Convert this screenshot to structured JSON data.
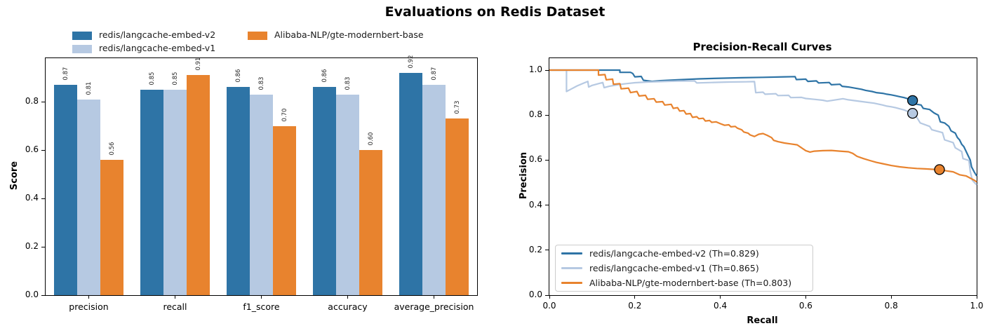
{
  "figure": {
    "title": "Evaluations on Redis Dataset",
    "background": "#ffffff"
  },
  "palette": {
    "embed_v2": "#2e74a6",
    "embed_v1": "#b6c9e2",
    "modernbert": "#e8832e",
    "marker_edge": "#000000",
    "axis": "#000000",
    "legend_border": "#cccccc"
  },
  "legend_top": {
    "items": [
      {
        "label": "redis/langcache-embed-v2",
        "color_key": "embed_v2"
      },
      {
        "label": "redis/langcache-embed-v1",
        "color_key": "embed_v1"
      },
      {
        "label": "Alibaba-NLP/gte-modernbert-base",
        "color_key": "modernbert"
      }
    ]
  },
  "chart_data": [
    {
      "type": "bar",
      "title": "",
      "xlabel": "",
      "ylabel": "Score",
      "categories": [
        "precision",
        "recall",
        "f1_score",
        "accuracy",
        "average_precision"
      ],
      "series": [
        {
          "name": "redis/langcache-embed-v2",
          "color_key": "embed_v2",
          "values": [
            0.87,
            0.85,
            0.86,
            0.86,
            0.92
          ]
        },
        {
          "name": "redis/langcache-embed-v1",
          "color_key": "embed_v1",
          "values": [
            0.81,
            0.85,
            0.83,
            0.83,
            0.87
          ]
        },
        {
          "name": "Alibaba-NLP/gte-modernbert-base",
          "color_key": "modernbert",
          "values": [
            0.56,
            0.91,
            0.7,
            0.6,
            0.73
          ]
        }
      ],
      "ylim": [
        0,
        0.98
      ],
      "yticks": [
        0.0,
        0.2,
        0.4,
        0.6,
        0.8
      ],
      "bar_label_decimals": 2,
      "grid": false,
      "legend_position": "above-upper-left"
    },
    {
      "type": "line",
      "title": "Precision-Recall Curves",
      "xlabel": "Recall",
      "ylabel": "Precision",
      "xlim": [
        0.0,
        1.0
      ],
      "ylim": [
        0,
        1.053
      ],
      "xticks": [
        0.0,
        0.2,
        0.4,
        0.6,
        0.8,
        1.0
      ],
      "yticks": [
        0.0,
        0.2,
        0.4,
        0.6,
        0.8,
        1.0
      ],
      "grid": false,
      "legend_position": "lower-left",
      "series": [
        {
          "name": "redis/langcache-embed-v2",
          "legend_label": "redis/langcache-embed-v2 (Th=0.829)",
          "threshold": 0.829,
          "color_key": "embed_v2",
          "operating_point": [
            0.85,
            0.865
          ],
          "points": [
            [
              0,
              1.0
            ],
            [
              0.165,
              1.0
            ],
            [
              0.165,
              0.99
            ],
            [
              0.19,
              0.99
            ],
            [
              0.195,
              0.985
            ],
            [
              0.2,
              0.97
            ],
            [
              0.215,
              0.972
            ],
            [
              0.22,
              0.955
            ],
            [
              0.24,
              0.95
            ],
            [
              0.26,
              0.953
            ],
            [
              0.3,
              0.957
            ],
            [
              0.35,
              0.961
            ],
            [
              0.4,
              0.964
            ],
            [
              0.45,
              0.966
            ],
            [
              0.5,
              0.968
            ],
            [
              0.55,
              0.97
            ],
            [
              0.575,
              0.971
            ],
            [
              0.578,
              0.958
            ],
            [
              0.6,
              0.96
            ],
            [
              0.605,
              0.95
            ],
            [
              0.625,
              0.952
            ],
            [
              0.63,
              0.943
            ],
            [
              0.655,
              0.945
            ],
            [
              0.66,
              0.935
            ],
            [
              0.68,
              0.937
            ],
            [
              0.685,
              0.928
            ],
            [
              0.7,
              0.925
            ],
            [
              0.715,
              0.92
            ],
            [
              0.73,
              0.915
            ],
            [
              0.74,
              0.91
            ],
            [
              0.755,
              0.905
            ],
            [
              0.765,
              0.9
            ],
            [
              0.78,
              0.897
            ],
            [
              0.79,
              0.893
            ],
            [
              0.8,
              0.89
            ],
            [
              0.81,
              0.886
            ],
            [
              0.82,
              0.882
            ],
            [
              0.83,
              0.878
            ],
            [
              0.84,
              0.872
            ],
            [
              0.845,
              0.868
            ],
            [
              0.85,
              0.865
            ],
            [
              0.855,
              0.85
            ],
            [
              0.87,
              0.845
            ],
            [
              0.875,
              0.83
            ],
            [
              0.89,
              0.825
            ],
            [
              0.9,
              0.81
            ],
            [
              0.905,
              0.805
            ],
            [
              0.91,
              0.8
            ],
            [
              0.915,
              0.77
            ],
            [
              0.925,
              0.765
            ],
            [
              0.935,
              0.75
            ],
            [
              0.94,
              0.73
            ],
            [
              0.95,
              0.72
            ],
            [
              0.955,
              0.7
            ],
            [
              0.96,
              0.69
            ],
            [
              0.965,
              0.67
            ],
            [
              0.97,
              0.66
            ],
            [
              0.975,
              0.64
            ],
            [
              0.98,
              0.62
            ],
            [
              0.985,
              0.6
            ],
            [
              0.988,
              0.57
            ],
            [
              0.995,
              0.545
            ],
            [
              1.0,
              0.53
            ]
          ]
        },
        {
          "name": "redis/langcache-embed-v1",
          "legend_label": "redis/langcache-embed-v1 (Th=0.865)",
          "threshold": 0.865,
          "color_key": "embed_v1",
          "operating_point": [
            0.85,
            0.808
          ],
          "points": [
            [
              0,
              1.0
            ],
            [
              0.04,
              1.0
            ],
            [
              0.04,
              0.905
            ],
            [
              0.05,
              0.915
            ],
            [
              0.065,
              0.93
            ],
            [
              0.08,
              0.942
            ],
            [
              0.09,
              0.95
            ],
            [
              0.092,
              0.925
            ],
            [
              0.1,
              0.932
            ],
            [
              0.115,
              0.94
            ],
            [
              0.125,
              0.945
            ],
            [
              0.128,
              0.922
            ],
            [
              0.14,
              0.928
            ],
            [
              0.16,
              0.935
            ],
            [
              0.18,
              0.94
            ],
            [
              0.2,
              0.944
            ],
            [
              0.23,
              0.947
            ],
            [
              0.26,
              0.949
            ],
            [
              0.3,
              0.951
            ],
            [
              0.34,
              0.952
            ],
            [
              0.345,
              0.943
            ],
            [
              0.38,
              0.945
            ],
            [
              0.42,
              0.947
            ],
            [
              0.46,
              0.948
            ],
            [
              0.48,
              0.949
            ],
            [
              0.483,
              0.9
            ],
            [
              0.5,
              0.902
            ],
            [
              0.505,
              0.893
            ],
            [
              0.53,
              0.895
            ],
            [
              0.535,
              0.887
            ],
            [
              0.56,
              0.888
            ],
            [
              0.565,
              0.878
            ],
            [
              0.59,
              0.879
            ],
            [
              0.6,
              0.874
            ],
            [
              0.62,
              0.87
            ],
            [
              0.64,
              0.866
            ],
            [
              0.65,
              0.862
            ],
            [
              0.67,
              0.868
            ],
            [
              0.687,
              0.873
            ],
            [
              0.7,
              0.868
            ],
            [
              0.72,
              0.863
            ],
            [
              0.74,
              0.858
            ],
            [
              0.76,
              0.853
            ],
            [
              0.78,
              0.845
            ],
            [
              0.79,
              0.84
            ],
            [
              0.8,
              0.837
            ],
            [
              0.81,
              0.833
            ],
            [
              0.82,
              0.828
            ],
            [
              0.83,
              0.823
            ],
            [
              0.84,
              0.815
            ],
            [
              0.85,
              0.808
            ],
            [
              0.855,
              0.795
            ],
            [
              0.86,
              0.79
            ],
            [
              0.868,
              0.765
            ],
            [
              0.89,
              0.75
            ],
            [
              0.895,
              0.735
            ],
            [
              0.92,
              0.722
            ],
            [
              0.925,
              0.69
            ],
            [
              0.945,
              0.678
            ],
            [
              0.95,
              0.655
            ],
            [
              0.965,
              0.638
            ],
            [
              0.968,
              0.607
            ],
            [
              0.982,
              0.598
            ],
            [
              0.985,
              0.55
            ],
            [
              0.99,
              0.51
            ],
            [
              1.0,
              0.49
            ]
          ]
        },
        {
          "name": "Alibaba-NLP/gte-modernbert-base",
          "legend_label": "Alibaba-NLP/gte-modernbert-base (Th=0.803)",
          "threshold": 0.803,
          "color_key": "modernbert",
          "operating_point": [
            0.913,
            0.558
          ],
          "points": [
            [
              0,
              1.0
            ],
            [
              0.115,
              1.0
            ],
            [
              0.115,
              0.978
            ],
            [
              0.13,
              0.98
            ],
            [
              0.133,
              0.957
            ],
            [
              0.148,
              0.96
            ],
            [
              0.15,
              0.937
            ],
            [
              0.165,
              0.94
            ],
            [
              0.168,
              0.917
            ],
            [
              0.185,
              0.92
            ],
            [
              0.19,
              0.9
            ],
            [
              0.205,
              0.905
            ],
            [
              0.21,
              0.885
            ],
            [
              0.225,
              0.888
            ],
            [
              0.23,
              0.87
            ],
            [
              0.245,
              0.873
            ],
            [
              0.25,
              0.858
            ],
            [
              0.265,
              0.86
            ],
            [
              0.27,
              0.845
            ],
            [
              0.285,
              0.848
            ],
            [
              0.29,
              0.83
            ],
            [
              0.3,
              0.833
            ],
            [
              0.305,
              0.818
            ],
            [
              0.315,
              0.82
            ],
            [
              0.32,
              0.805
            ],
            [
              0.33,
              0.807
            ],
            [
              0.335,
              0.79
            ],
            [
              0.345,
              0.793
            ],
            [
              0.35,
              0.784
            ],
            [
              0.36,
              0.786
            ],
            [
              0.365,
              0.774
            ],
            [
              0.375,
              0.776
            ],
            [
              0.38,
              0.768
            ],
            [
              0.39,
              0.77
            ],
            [
              0.4,
              0.762
            ],
            [
              0.41,
              0.755
            ],
            [
              0.42,
              0.757
            ],
            [
              0.425,
              0.748
            ],
            [
              0.435,
              0.75
            ],
            [
              0.44,
              0.742
            ],
            [
              0.45,
              0.735
            ],
            [
              0.455,
              0.725
            ],
            [
              0.465,
              0.72
            ],
            [
              0.47,
              0.712
            ],
            [
              0.48,
              0.705
            ],
            [
              0.49,
              0.715
            ],
            [
              0.5,
              0.718
            ],
            [
              0.51,
              0.71
            ],
            [
              0.52,
              0.7
            ],
            [
              0.525,
              0.688
            ],
            [
              0.535,
              0.682
            ],
            [
              0.55,
              0.676
            ],
            [
              0.565,
              0.672
            ],
            [
              0.58,
              0.668
            ],
            [
              0.59,
              0.655
            ],
            [
              0.6,
              0.642
            ],
            [
              0.61,
              0.636
            ],
            [
              0.62,
              0.64
            ],
            [
              0.64,
              0.642
            ],
            [
              0.66,
              0.643
            ],
            [
              0.68,
              0.64
            ],
            [
              0.7,
              0.637
            ],
            [
              0.71,
              0.63
            ],
            [
              0.72,
              0.617
            ],
            [
              0.735,
              0.607
            ],
            [
              0.75,
              0.598
            ],
            [
              0.765,
              0.59
            ],
            [
              0.78,
              0.584
            ],
            [
              0.8,
              0.576
            ],
            [
              0.82,
              0.57
            ],
            [
              0.84,
              0.566
            ],
            [
              0.86,
              0.563
            ],
            [
              0.88,
              0.561
            ],
            [
              0.9,
              0.559
            ],
            [
              0.913,
              0.558
            ],
            [
              0.93,
              0.552
            ],
            [
              0.945,
              0.548
            ],
            [
              0.96,
              0.535
            ],
            [
              0.975,
              0.53
            ],
            [
              0.985,
              0.52
            ],
            [
              0.995,
              0.51
            ],
            [
              1.0,
              0.503
            ]
          ]
        }
      ]
    }
  ]
}
